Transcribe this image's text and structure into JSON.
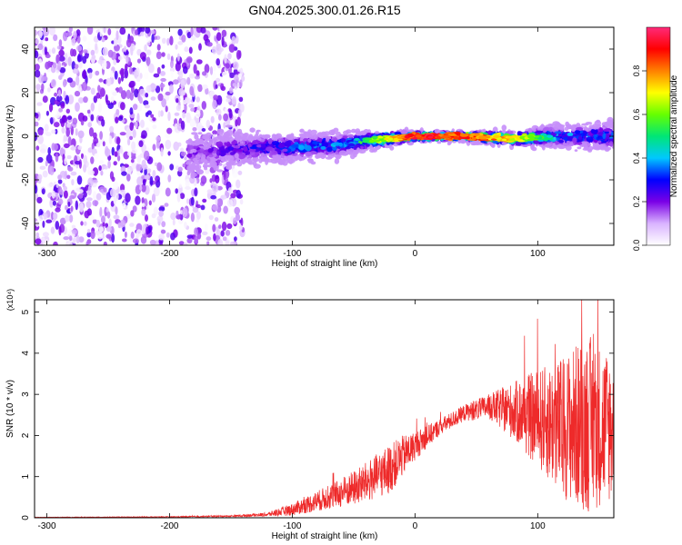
{
  "figure": {
    "title": "GN04.2025.300.01.26.R15"
  },
  "chart_data": [
    {
      "type": "heatmap",
      "xlabel": "Height of straight line (km)",
      "ylabel": "Frequency (Hz)",
      "xlim": [
        -310,
        162
      ],
      "ylim": [
        -50,
        50
      ],
      "xticks": [
        -300,
        -200,
        -100,
        0,
        100
      ],
      "yticks": [
        -40,
        -20,
        0,
        20,
        40
      ],
      "colorbar": {
        "label": "Normalized spectral amplitude",
        "range": [
          0,
          1
        ],
        "ticks": [
          "0.0",
          "0.2",
          "0.4",
          "0.6",
          "0.8"
        ],
        "colormap": [
          "#ffffff",
          "#d9b3ff",
          "#7a00e6",
          "#0000ff",
          "#00c8ff",
          "#00e676",
          "#66ff00",
          "#ffff00",
          "#ff8000",
          "#ff0000",
          "#ff2a7a"
        ]
      },
      "band": {
        "center_hz": 0,
        "x_points": [
          -185,
          -150,
          -100,
          -60,
          -40,
          -20,
          0,
          40,
          80,
          120,
          162
        ],
        "center_freq": [
          -8,
          -6,
          -5,
          -4,
          -2,
          -1,
          0,
          0,
          -1,
          0,
          0
        ],
        "half_width_hz": [
          8,
          7,
          6,
          5,
          4,
          3,
          2,
          2,
          3,
          5,
          6
        ],
        "peak_amplitude": [
          0.2,
          0.25,
          0.35,
          0.4,
          0.55,
          0.75,
          0.95,
          0.9,
          0.75,
          0.4,
          0.35
        ]
      },
      "noise_region": {
        "x_range": [
          -310,
          -140
        ],
        "amplitude": 0.15
      }
    },
    {
      "type": "line",
      "xlabel": "Height of straight line (km)",
      "ylabel": "SNR (10 * v/v)",
      "multiplier": "(x10⁴)",
      "xlim": [
        -310,
        162
      ],
      "ylim": [
        0,
        5.3
      ],
      "xticks": [
        -300,
        -200,
        -100,
        0,
        100
      ],
      "yticks": [
        0,
        1,
        2,
        3,
        4,
        5
      ],
      "color": "#ee2a2a",
      "envelope": {
        "x": [
          -310,
          -200,
          -150,
          -120,
          -100,
          -80,
          -60,
          -40,
          -20,
          -10,
          0,
          20,
          40,
          60,
          80,
          100,
          120,
          140,
          162
        ],
        "mean": [
          0.01,
          0.02,
          0.04,
          0.08,
          0.2,
          0.4,
          0.6,
          0.85,
          1.2,
          1.5,
          1.75,
          2.2,
          2.55,
          2.7,
          2.6,
          2.4,
          2.2,
          2.3,
          2.2
        ],
        "spread": [
          0.005,
          0.01,
          0.02,
          0.05,
          0.15,
          0.25,
          0.35,
          0.5,
          0.6,
          0.5,
          0.35,
          0.2,
          0.2,
          0.3,
          0.7,
          1.2,
          1.7,
          2.2,
          1.8
        ]
      }
    }
  ]
}
